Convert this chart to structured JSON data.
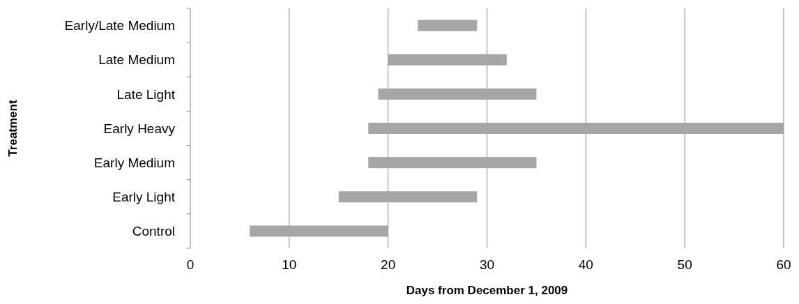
{
  "chart_data": {
    "type": "bar",
    "orientation": "horizontal",
    "xlabel": "Days from December 1, 2009",
    "ylabel": "Treatment",
    "categories": [
      "Early/Late Medium",
      "Late Medium",
      "Late Light",
      "Early Heavy",
      "Early Medium",
      "Early Light",
      "Control"
    ],
    "base": [
      23,
      20,
      19,
      18,
      18,
      15,
      6
    ],
    "values": [
      6,
      12,
      16,
      42,
      17,
      14,
      14
    ],
    "color": "#a6a6a6",
    "xlim": [
      0,
      60
    ],
    "xticks": [
      0,
      10,
      20,
      30,
      40,
      50,
      60
    ],
    "grid": "x"
  }
}
